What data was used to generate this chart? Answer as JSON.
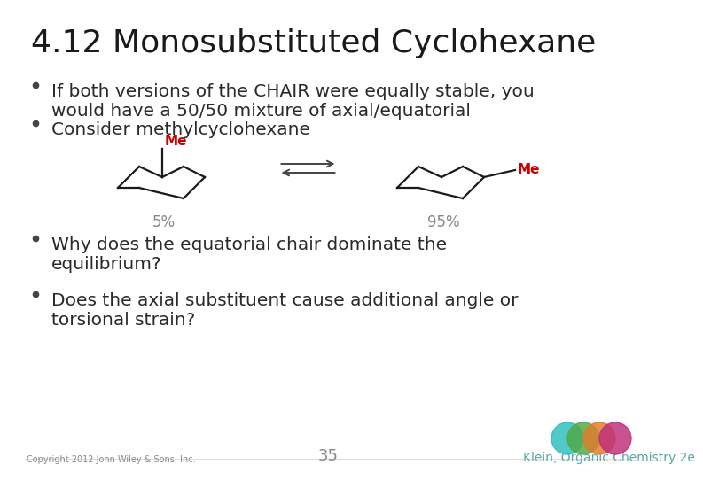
{
  "title": "4.12 Monosubstituted Cyclohexane",
  "bg_color": "#ffffff",
  "title_color": "#1a1a1a",
  "title_fontsize": 26,
  "bullet_color": "#2a2a2a",
  "bullet_dot_color": "#444444",
  "bullet_fontsize": 14.5,
  "bullet1_line1": "If both versions of the CHAIR were equally stable, you",
  "bullet1_line2": "would have a 50/50 mixture of axial/equatorial",
  "bullet2": "Consider methylcyclohexane",
  "bullet3_line1": "Why does the equatorial chair dominate the",
  "bullet3_line2": "equilibrium?",
  "bullet4_line1": "Does the axial substituent cause additional angle or",
  "bullet4_line2": "torsional strain?",
  "me_color": "#cc0000",
  "pct_color": "#888888",
  "pct_fontsize": 12,
  "arrow_color": "#444444",
  "footer_left": "Copyright 2012 John Wiley & Sons, Inc.",
  "footer_center": "35",
  "footer_right": "Klein, Organic Chemistry 2e",
  "footer_color": "#888888",
  "footer_right_color": "#5ba8a5",
  "circle_colors": [
    "#2bbdbe",
    "#4fa843",
    "#e07c2a",
    "#be2d7a"
  ],
  "line_color": "#1a1a1a",
  "line_width": 1.6
}
